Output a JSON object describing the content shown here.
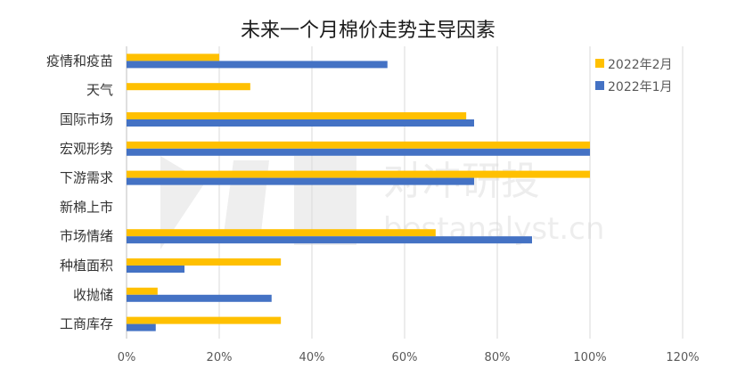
{
  "chart_data": {
    "type": "bar",
    "orientation": "horizontal",
    "title": "未来一个月棉价走势主导因素",
    "categories": [
      "疫情和疫苗",
      "天气",
      "国际市场",
      "宏观形势",
      "下游需求",
      "新棉上市",
      "市场情绪",
      "种植面积",
      "收抛储",
      "工商库存"
    ],
    "series": [
      {
        "name": "2022年2月",
        "color": "#FFC000",
        "values": [
          20,
          26.7,
          73.3,
          100,
          100,
          0,
          66.7,
          33.3,
          6.7,
          33.3
        ]
      },
      {
        "name": "2022年1月",
        "color": "#4472C4",
        "values": [
          56.3,
          0,
          75,
          100,
          75,
          0,
          87.5,
          12.5,
          31.3,
          6.3
        ]
      }
    ],
    "xlim": [
      0,
      120
    ],
    "xticks": [
      "0%",
      "20%",
      "40%",
      "60%",
      "80%",
      "100%",
      "120%"
    ],
    "grid": true,
    "legend_position": "top-right",
    "xlabel": "",
    "ylabel": ""
  },
  "watermark": {
    "text_cn": "对冲研投",
    "text_en": "bestanalyst.cn"
  }
}
